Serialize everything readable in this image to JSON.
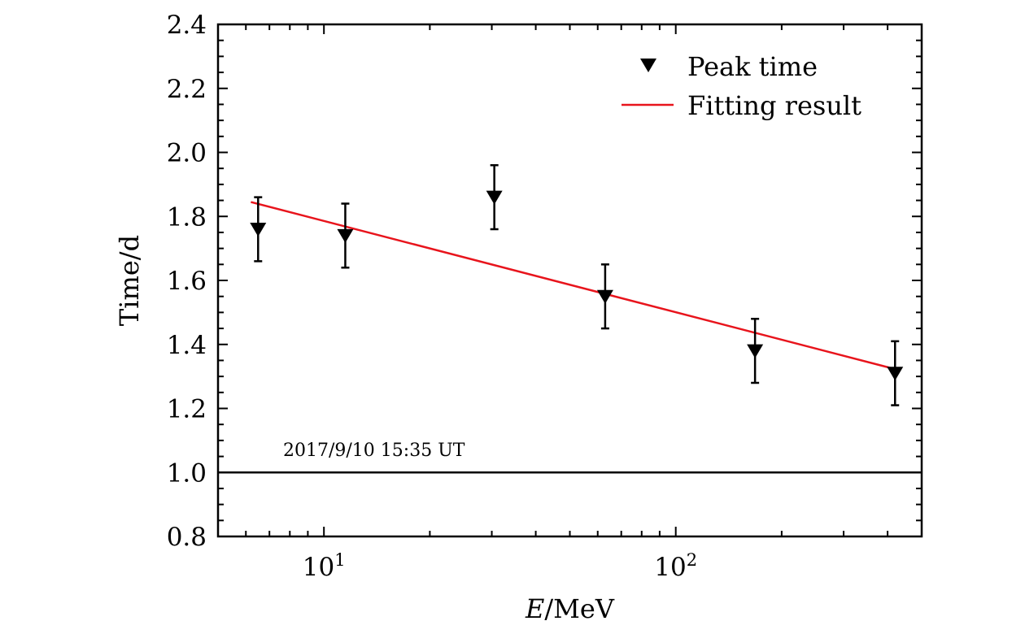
{
  "chart_data": {
    "type": "scatter",
    "xscale": "log",
    "xlim": [
      5,
      500
    ],
    "ylim": [
      0.8,
      2.4
    ],
    "xlabel_var": "E",
    "xlabel_unit": "/MeV",
    "ylabel": "Time/d",
    "yticks": [
      "0.8",
      "1.0",
      "1.2",
      "1.4",
      "1.6",
      "1.8",
      "2.0",
      "2.2",
      "2.4"
    ],
    "xticks": [
      {
        "value": 10,
        "base": "10",
        "exp": "1"
      },
      {
        "value": 100,
        "base": "10",
        "exp": "2"
      }
    ],
    "legend_position": "top-right",
    "series": [
      {
        "name": "Peak time",
        "kind": "points",
        "marker": "down-triangle",
        "color": "#000000",
        "points": [
          {
            "x": 6.5,
            "y": 1.76,
            "err": 0.1
          },
          {
            "x": 11.5,
            "y": 1.74,
            "err": 0.1
          },
          {
            "x": 30.5,
            "y": 1.86,
            "err": 0.1
          },
          {
            "x": 63,
            "y": 1.55,
            "err": 0.1
          },
          {
            "x": 168,
            "y": 1.38,
            "err": 0.1
          },
          {
            "x": 420,
            "y": 1.31,
            "err": 0.1
          }
        ]
      },
      {
        "name": "Fitting result",
        "kind": "line",
        "color": "#e8141c",
        "points": [
          {
            "x": 6.2,
            "y": 1.845
          },
          {
            "x": 430,
            "y": 1.32
          }
        ]
      }
    ],
    "reference_line": {
      "y": 1.0,
      "color": "#000000"
    },
    "annotation": "2017/9/10 15:35 UT"
  }
}
